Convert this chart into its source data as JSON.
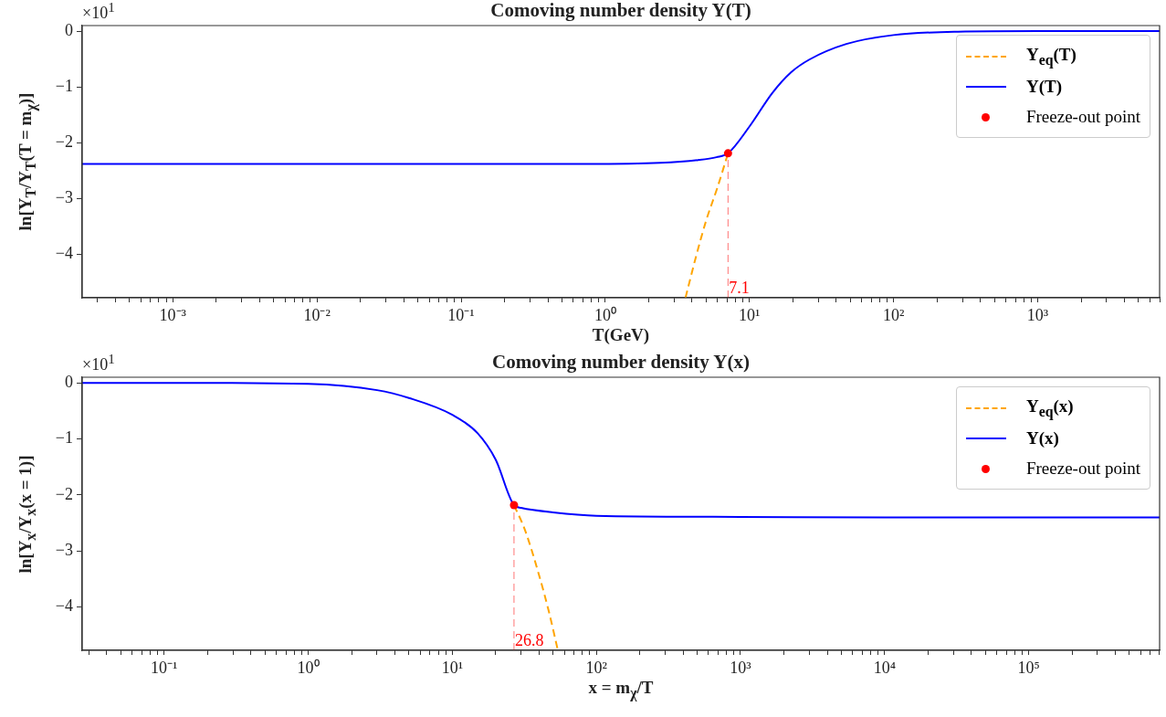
{
  "chart_data": [
    {
      "type": "line",
      "title": "Comoving number density Y(T)",
      "xlabel": "T(GeV)",
      "ylabel": "ln[Y$_{T}$/Y$_{T}$(T = m$_{χ}$)]",
      "annotations": [
        "×10$^{1}$"
      ],
      "log": "x",
      "grid": false,
      "legend": "top right",
      "xlim": [
        0.000235,
        7000
      ],
      "xticks": [
        {
          "value": 0.0003,
          "label": null
        },
        {
          "value": 0.0004,
          "label": null
        },
        {
          "value": 0.0005,
          "label": null
        },
        {
          "value": 0.0006,
          "label": null
        },
        {
          "value": 0.0007,
          "label": null
        },
        {
          "value": 0.0008,
          "label": null
        },
        {
          "value": 0.0009,
          "label": null
        },
        {
          "value": 0.001,
          "label": "10⁻³"
        },
        {
          "value": 0.002,
          "label": null
        },
        {
          "value": 0.003,
          "label": null
        },
        {
          "value": 0.004,
          "label": null
        },
        {
          "value": 0.005,
          "label": null
        },
        {
          "value": 0.006,
          "label": null
        },
        {
          "value": 0.007,
          "label": null
        },
        {
          "value": 0.008,
          "label": null
        },
        {
          "value": 0.009,
          "label": null
        },
        {
          "value": 0.01,
          "label": "10⁻²"
        },
        {
          "value": 0.02,
          "label": null
        },
        {
          "value": 0.03,
          "label": null
        },
        {
          "value": 0.04,
          "label": null
        },
        {
          "value": 0.05,
          "label": null
        },
        {
          "value": 0.06,
          "label": null
        },
        {
          "value": 0.07,
          "label": null
        },
        {
          "value": 0.08,
          "label": null
        },
        {
          "value": 0.09,
          "label": null
        },
        {
          "value": 0.1,
          "label": "10⁻¹"
        },
        {
          "value": 0.2,
          "label": null
        },
        {
          "value": 0.3,
          "label": null
        },
        {
          "value": 0.4,
          "label": null
        },
        {
          "value": 0.5,
          "label": null
        },
        {
          "value": 0.6,
          "label": null
        },
        {
          "value": 0.7,
          "label": null
        },
        {
          "value": 0.8,
          "label": null
        },
        {
          "value": 0.9,
          "label": null
        },
        {
          "value": 1,
          "label": "10⁰"
        },
        {
          "value": 2,
          "label": null
        },
        {
          "value": 3,
          "label": null
        },
        {
          "value": 4,
          "label": null
        },
        {
          "value": 5,
          "label": null
        },
        {
          "value": 6,
          "label": null
        },
        {
          "value": 7,
          "label": null
        },
        {
          "value": 8,
          "label": null
        },
        {
          "value": 9,
          "label": null
        },
        {
          "value": 10,
          "label": "10¹"
        },
        {
          "value": 20,
          "label": null
        },
        {
          "value": 30,
          "label": null
        },
        {
          "value": 40,
          "label": null
        },
        {
          "value": 50,
          "label": null
        },
        {
          "value": 60,
          "label": null
        },
        {
          "value": 70,
          "label": null
        },
        {
          "value": 80,
          "label": null
        },
        {
          "value": 90,
          "label": null
        },
        {
          "value": 100,
          "label": "10²"
        },
        {
          "value": 200,
          "label": null
        },
        {
          "value": 300,
          "label": null
        },
        {
          "value": 400,
          "label": null
        },
        {
          "value": 500,
          "label": null
        },
        {
          "value": 600,
          "label": null
        },
        {
          "value": 700,
          "label": null
        },
        {
          "value": 800,
          "label": null
        },
        {
          "value": 900,
          "label": null
        },
        {
          "value": 1000,
          "label": "10³"
        },
        {
          "value": 2000,
          "label": null
        },
        {
          "value": 3000,
          "label": null
        },
        {
          "value": 4000,
          "label": null
        },
        {
          "value": 5000,
          "label": null
        },
        {
          "value": 6000,
          "label": null
        },
        {
          "value": 7000,
          "label": null
        }
      ],
      "ylim": [
        -4.78,
        0.1
      ],
      "yticks": [
        0,
        -1,
        -2,
        -3,
        -4
      ],
      "ref_lines": [
        {
          "axis": "x",
          "value": 7.1,
          "label": "7.1",
          "color": "#ff0000",
          "line_style": "dashed"
        }
      ],
      "series": [
        {
          "name": "Y$_{eq}$(T)",
          "type": "line",
          "color": "#ffa500",
          "line_style": "dashed",
          "marker": "none",
          "x": [
            3.6,
            4.2,
            5.0,
            6.0,
            7.1
          ],
          "values": [
            -4.78,
            -4.1,
            -3.4,
            -2.8,
            -2.19
          ]
        },
        {
          "name": "Y(T)",
          "type": "line",
          "color": "#0000ff",
          "line_style": "solid",
          "marker": "none",
          "x": [
            0.000235,
            0.001,
            0.01,
            0.1,
            0.73,
            2.4,
            4.4,
            5.9,
            7.1,
            10,
            14.4,
            19.4,
            26,
            47,
            100,
            280,
            1000,
            7000
          ],
          "values": [
            -2.38,
            -2.38,
            -2.38,
            -2.38,
            -2.38,
            -2.36,
            -2.31,
            -2.26,
            -2.19,
            -1.71,
            -1.11,
            -0.74,
            -0.51,
            -0.23,
            -0.07,
            -0.01,
            0,
            0
          ]
        },
        {
          "name": "Freeze-out point",
          "type": "scatter",
          "color": "#ff0000",
          "marker": "circle",
          "x": [
            7.1
          ],
          "values": [
            -2.19
          ]
        }
      ]
    },
    {
      "type": "line",
      "title": "Comoving number density Y(x)",
      "xlabel": "x = m$_{χ}$/T",
      "ylabel": "ln[Y$_{x}$/Y$_{x}$(x = 1)]",
      "annotations": [
        "×10$^{1}$"
      ],
      "log": "x",
      "grid": false,
      "legend": "top right",
      "xlim": [
        0.027,
        810000
      ],
      "xticks": [
        {
          "value": 0.03,
          "label": null
        },
        {
          "value": 0.04,
          "label": null
        },
        {
          "value": 0.05,
          "label": null
        },
        {
          "value": 0.06,
          "label": null
        },
        {
          "value": 0.07,
          "label": null
        },
        {
          "value": 0.08,
          "label": null
        },
        {
          "value": 0.09,
          "label": null
        },
        {
          "value": 0.1,
          "label": "10⁻¹"
        },
        {
          "value": 0.2,
          "label": null
        },
        {
          "value": 0.3,
          "label": null
        },
        {
          "value": 0.4,
          "label": null
        },
        {
          "value": 0.5,
          "label": null
        },
        {
          "value": 0.6,
          "label": null
        },
        {
          "value": 0.7,
          "label": null
        },
        {
          "value": 0.8,
          "label": null
        },
        {
          "value": 0.9,
          "label": null
        },
        {
          "value": 1,
          "label": "10⁰"
        },
        {
          "value": 2,
          "label": null
        },
        {
          "value": 3,
          "label": null
        },
        {
          "value": 4,
          "label": null
        },
        {
          "value": 5,
          "label": null
        },
        {
          "value": 6,
          "label": null
        },
        {
          "value": 7,
          "label": null
        },
        {
          "value": 8,
          "label": null
        },
        {
          "value": 9,
          "label": null
        },
        {
          "value": 10,
          "label": "10¹"
        },
        {
          "value": 20,
          "label": null
        },
        {
          "value": 30,
          "label": null
        },
        {
          "value": 40,
          "label": null
        },
        {
          "value": 50,
          "label": null
        },
        {
          "value": 60,
          "label": null
        },
        {
          "value": 70,
          "label": null
        },
        {
          "value": 80,
          "label": null
        },
        {
          "value": 90,
          "label": null
        },
        {
          "value": 100,
          "label": "10²"
        },
        {
          "value": 200,
          "label": null
        },
        {
          "value": 300,
          "label": null
        },
        {
          "value": 400,
          "label": null
        },
        {
          "value": 500,
          "label": null
        },
        {
          "value": 600,
          "label": null
        },
        {
          "value": 700,
          "label": null
        },
        {
          "value": 800,
          "label": null
        },
        {
          "value": 900,
          "label": null
        },
        {
          "value": 1000,
          "label": "10³"
        },
        {
          "value": 2000,
          "label": null
        },
        {
          "value": 3000,
          "label": null
        },
        {
          "value": 4000,
          "label": null
        },
        {
          "value": 5000,
          "label": null
        },
        {
          "value": 6000,
          "label": null
        },
        {
          "value": 7000,
          "label": null
        },
        {
          "value": 8000,
          "label": null
        },
        {
          "value": 9000,
          "label": null
        },
        {
          "value": 10000,
          "label": "10⁴"
        },
        {
          "value": 20000,
          "label": null
        },
        {
          "value": 30000,
          "label": null
        },
        {
          "value": 40000,
          "label": null
        },
        {
          "value": 50000,
          "label": null
        },
        {
          "value": 60000,
          "label": null
        },
        {
          "value": 70000,
          "label": null
        },
        {
          "value": 80000,
          "label": null
        },
        {
          "value": 90000,
          "label": null
        },
        {
          "value": 100000,
          "label": "10⁵"
        },
        {
          "value": 200000,
          "label": null
        },
        {
          "value": 300000,
          "label": null
        },
        {
          "value": 400000,
          "label": null
        },
        {
          "value": 500000,
          "label": null
        },
        {
          "value": 600000,
          "label": null
        },
        {
          "value": 700000,
          "label": null
        },
        {
          "value": 800000,
          "label": null
        }
      ],
      "ylim": [
        -4.77,
        0.1
      ],
      "yticks": [
        0,
        -1,
        -2,
        -3,
        -4
      ],
      "ref_lines": [
        {
          "axis": "x",
          "value": 26.8,
          "label": "26.8",
          "color": "#ff0000",
          "line_style": "dashed"
        }
      ],
      "series": [
        {
          "name": "Y$_{eq}$(x)",
          "type": "line",
          "color": "#ffa500",
          "line_style": "dashed",
          "marker": "none",
          "x": [
            26.8,
            32,
            40,
            47,
            54
          ],
          "values": [
            -2.18,
            -2.63,
            -3.43,
            -4.1,
            -4.77
          ]
        },
        {
          "name": "Y(x)",
          "type": "line",
          "color": "#0000ff",
          "line_style": "solid",
          "marker": "none",
          "x": [
            0.027,
            0.1,
            1,
            3,
            5,
            10,
            15,
            20,
            26.8,
            30,
            50,
            100,
            1000,
            10000,
            100000,
            810000
          ],
          "values": [
            0,
            0,
            -0.02,
            -0.13,
            -0.27,
            -0.57,
            -0.9,
            -1.37,
            -2.18,
            -2.23,
            -2.31,
            -2.37,
            -2.39,
            -2.4,
            -2.4,
            -2.4
          ]
        },
        {
          "name": "Freeze-out point",
          "type": "scatter",
          "color": "#ff0000",
          "marker": "circle",
          "x": [
            26.8
          ],
          "values": [
            -2.18
          ]
        }
      ]
    }
  ]
}
